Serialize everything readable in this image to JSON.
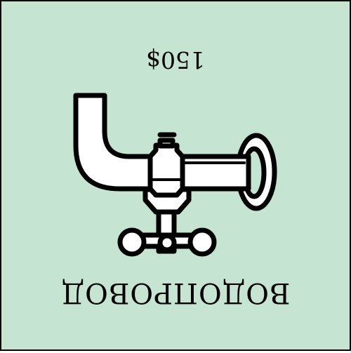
{
  "card": {
    "name": "ВОДОПРОВОД",
    "price": "150$",
    "icon": "water-faucet-icon",
    "orientation": "upside-down",
    "colors": {
      "background": "#c5e5d2",
      "border": "#000000",
      "ink": "#000000",
      "pipe": "#ffffff"
    }
  }
}
